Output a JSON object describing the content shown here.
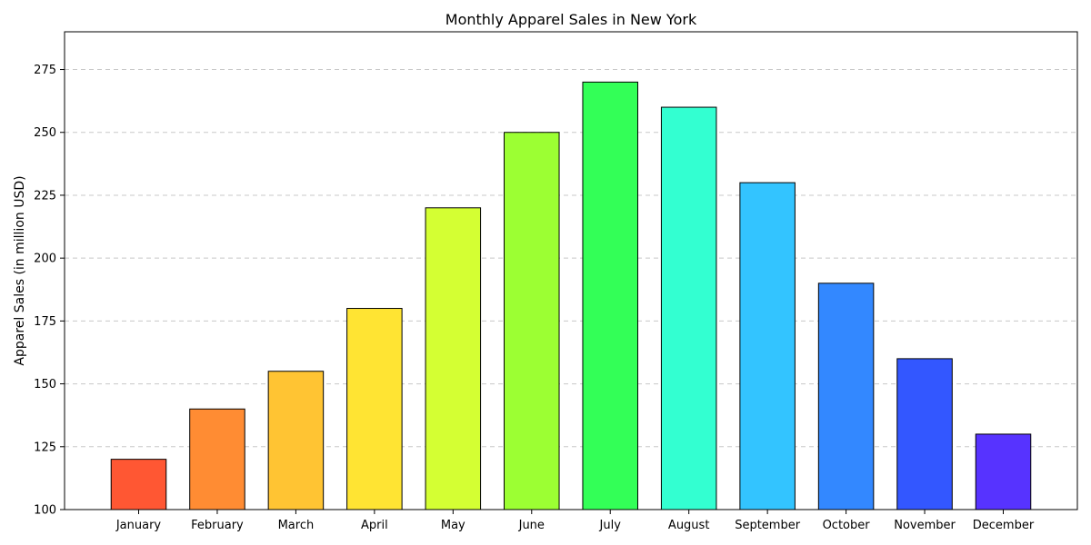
{
  "chart_data": {
    "type": "bar",
    "title": "Monthly Apparel Sales in New York",
    "xlabel": "",
    "ylabel": "Apparel Sales (in million USD)",
    "categories": [
      "January",
      "February",
      "March",
      "April",
      "May",
      "June",
      "July",
      "August",
      "September",
      "October",
      "November",
      "December"
    ],
    "values": [
      120,
      140,
      155,
      180,
      220,
      250,
      270,
      260,
      230,
      190,
      160,
      130
    ],
    "ylim": [
      100,
      290
    ],
    "yticks": [
      100,
      125,
      150,
      175,
      200,
      225,
      250,
      275
    ],
    "grid": true,
    "grid_axis": "y",
    "colors": [
      "#ff5733",
      "#ff8c33",
      "#ffc433",
      "#ffe433",
      "#d4ff33",
      "#9cff33",
      "#33ff57",
      "#33ffd1",
      "#33c4ff",
      "#3388ff",
      "#3357ff",
      "#5733ff"
    ],
    "edge_color": "#000000"
  }
}
